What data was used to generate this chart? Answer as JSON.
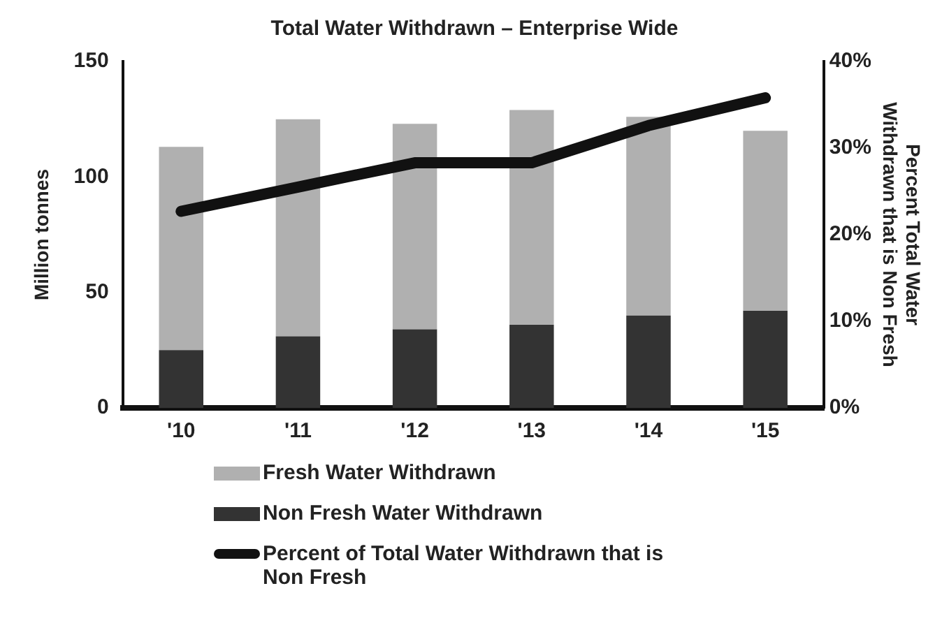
{
  "chart_data": {
    "type": "bar",
    "title": "Total Water Withdrawn – Enterprise Wide",
    "ylabel": "Million tonnes",
    "y2label": "Percent Total Water Withdrawn that is Non Fresh",
    "categories": [
      "'10",
      "'11",
      "'12",
      "'13",
      "'14",
      "'15"
    ],
    "stacked": true,
    "series": [
      {
        "name": "Non Fresh Water Withdrawn",
        "color": "#333333",
        "values": [
          25,
          31,
          34,
          36,
          40,
          42
        ]
      },
      {
        "name": "Fresh Water Withdrawn",
        "color": "#b0b0b0",
        "values": [
          88,
          94,
          89,
          93,
          86,
          78
        ]
      },
      {
        "name": "Percent of Total Water Withdrawn that is Non Fresh",
        "type": "line",
        "axis": "y2",
        "color": "#111111",
        "values": [
          22.7,
          25.5,
          28.3,
          28.3,
          32.6,
          35.8
        ]
      }
    ],
    "ylim": [
      0,
      150
    ],
    "yticks": [
      0,
      50,
      100,
      150
    ],
    "y2lim": [
      0,
      40
    ],
    "y2ticks": [
      {
        "value": 0,
        "label": "0%"
      },
      {
        "value": 10,
        "label": "10%"
      },
      {
        "value": 20,
        "label": "20%"
      },
      {
        "value": 30,
        "label": "30%"
      },
      {
        "value": 40,
        "label": "40%"
      }
    ],
    "grid": false,
    "legend": "bottom",
    "marker": "none",
    "line_style": "solid"
  }
}
